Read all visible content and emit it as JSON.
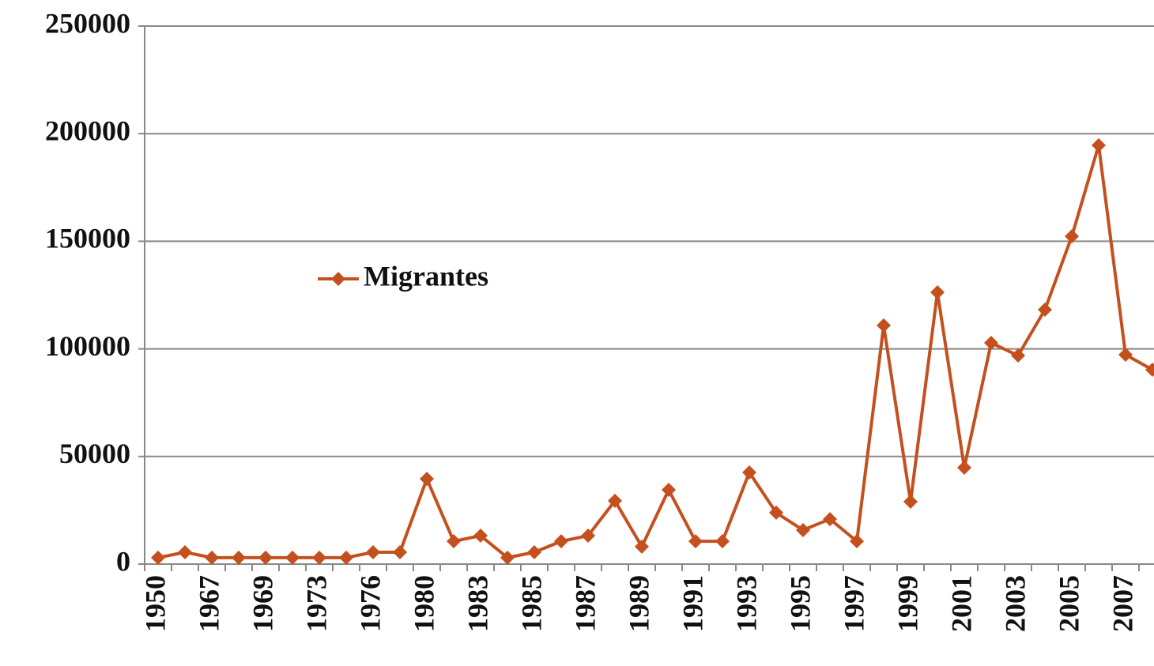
{
  "chart_data": {
    "type": "line",
    "categories": [
      "1950",
      null,
      "1967",
      null,
      "1969",
      null,
      "1973",
      null,
      "1976",
      null,
      "1980",
      null,
      "1983",
      null,
      "1985",
      null,
      "1987",
      null,
      "1989",
      null,
      "1991",
      null,
      "1993",
      null,
      "1995",
      null,
      "1997",
      null,
      "1999",
      null,
      "2001",
      null,
      "2003",
      null,
      "2005",
      null,
      "2007",
      null
    ],
    "series": [
      {
        "name": "Migrantes",
        "color": "#c4501e",
        "values": [
          3000,
          5500,
          3000,
          3000,
          3000,
          3000,
          3000,
          3000,
          5500,
          5500,
          39600,
          10600,
          13200,
          3000,
          5500,
          10600,
          13200,
          29400,
          8100,
          34500,
          10600,
          10600,
          42600,
          23900,
          15800,
          20900,
          10600,
          110900,
          29000,
          126300,
          44800,
          102800,
          96900,
          118200,
          152300,
          194600,
          97300,
          90300
        ]
      }
    ],
    "ylim": [
      0,
      250000
    ],
    "yticks": [
      0,
      50000,
      100000,
      150000,
      200000,
      250000
    ],
    "grid": true,
    "legend": "left"
  }
}
